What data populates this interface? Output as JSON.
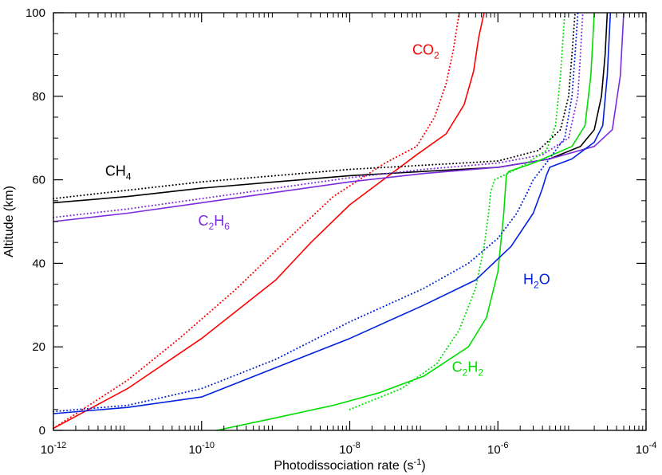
{
  "chart_data": {
    "type": "line",
    "xlabel": "Photodissociation rate (s",
    "xlabel_sup": "-1",
    "xlabel_end": ")",
    "ylabel": "Altitude (km)",
    "x_scale": "log",
    "xlim": [
      1e-12,
      0.0001
    ],
    "ylim": [
      0,
      100
    ],
    "x_ticks": [
      {
        "value": 1e-12,
        "base": "10",
        "exp": "-12"
      },
      {
        "value": 1e-10,
        "base": "10",
        "exp": "-10"
      },
      {
        "value": 1e-08,
        "base": "10",
        "exp": "-8"
      },
      {
        "value": 1e-06,
        "base": "10",
        "exp": "-6"
      },
      {
        "value": 0.0001,
        "base": "10",
        "exp": "-4"
      }
    ],
    "y_ticks": [
      0,
      20,
      40,
      60,
      80,
      100
    ],
    "grid": false,
    "legend": "inline labels",
    "series": [
      {
        "name": "CO2",
        "color": "#ff0000",
        "style": "solid",
        "x": [
          1e-12,
          1e-11,
          1e-10,
          1e-09,
          3e-09,
          1e-08,
          4e-08,
          8e-08,
          2e-07,
          3.5e-07,
          4.7e-07,
          5.5e-07,
          6.5e-07
        ],
        "y": [
          0.5,
          10,
          22,
          36,
          45,
          54,
          62,
          66,
          71,
          78,
          86,
          94,
          100
        ]
      },
      {
        "name": "CO2",
        "color": "#ff0000",
        "style": "dotted",
        "x": [
          1e-12,
          1e-11,
          5e-11,
          3e-10,
          1.5e-09,
          6e-09,
          3e-08,
          8e-08,
          1.4e-07,
          2e-07,
          2.5e-07,
          3e-07
        ],
        "y": [
          0.5,
          12,
          22,
          34,
          46,
          56,
          64,
          68,
          75,
          83,
          91,
          100
        ]
      },
      {
        "name": "CH4",
        "color": "#000000",
        "style": "solid",
        "x": [
          1e-12,
          1e-11,
          1e-10,
          1e-09,
          1e-08,
          1e-07,
          1e-06,
          5e-06,
          1.3e-05,
          2e-05,
          2.5e-05,
          2.8e-05,
          3e-05
        ],
        "y": [
          54.5,
          56,
          58,
          59.5,
          61,
          62,
          63,
          65,
          68,
          72,
          80,
          90,
          100
        ]
      },
      {
        "name": "CH4",
        "color": "#000000",
        "style": "dotted",
        "x": [
          1e-12,
          1e-11,
          1e-10,
          1e-09,
          1e-08,
          1e-07,
          1e-06,
          3.5e-06,
          7e-06,
          9e-06,
          1e-05,
          1.1e-05
        ],
        "y": [
          55.5,
          57.5,
          59.5,
          61,
          62.5,
          63.5,
          64.5,
          67,
          72,
          80,
          90,
          100
        ]
      },
      {
        "name": "C2H6",
        "color": "#7b2bde",
        "style": "solid",
        "x": [
          1e-12,
          1e-11,
          1e-10,
          1e-09,
          1e-08,
          1e-07,
          1e-06,
          5e-06,
          2e-05,
          3.5e-05,
          4.5e-05,
          5e-05
        ],
        "y": [
          50,
          52,
          54.5,
          57,
          59.5,
          61.5,
          63,
          65,
          68,
          72,
          85,
          100
        ]
      },
      {
        "name": "C2H6",
        "color": "#7b2bde",
        "style": "dotted",
        "x": [
          1e-12,
          1e-11,
          1e-10,
          1e-09,
          1e-08,
          1e-07,
          1e-06,
          4e-06,
          9e-06,
          1.2e-05,
          1.3e-05,
          1.4e-05
        ],
        "y": [
          51,
          53,
          55.5,
          58,
          60.5,
          62.5,
          64,
          66,
          70,
          80,
          90,
          100
        ]
      },
      {
        "name": "C2H2",
        "color": "#00dd00",
        "style": "solid",
        "x": [
          1.6e-10,
          1e-09,
          6e-09,
          2.5e-08,
          1e-07,
          4e-07,
          7e-07,
          1e-06,
          1.2e-06,
          1.3e-06,
          1.4e-06,
          3e-06,
          1e-05,
          1.5e-05,
          1.8e-05,
          2e-05
        ],
        "y": [
          0,
          3,
          6,
          9,
          13,
          20,
          27,
          38,
          52,
          61,
          62,
          64,
          68,
          73,
          85,
          100
        ]
      },
      {
        "name": "C2H2",
        "color": "#00dd00",
        "style": "dotted",
        "x": [
          1e-08,
          5e-08,
          1.5e-07,
          3e-07,
          5e-07,
          6.5e-07,
          7.5e-07,
          8e-07,
          9e-07,
          2e-06,
          4.5e-06,
          6e-06,
          7e-06,
          8e-06
        ],
        "y": [
          5,
          10,
          16,
          24,
          34,
          44,
          52,
          57,
          60,
          63,
          67,
          73,
          85,
          100
        ]
      },
      {
        "name": "H2O",
        "color": "#0022dd",
        "style": "solid",
        "x": [
          1e-12,
          1e-11,
          1e-10,
          1e-09,
          1e-08,
          1e-07,
          5e-07,
          1.5e-06,
          3e-06,
          4e-06,
          4.5e-06,
          5e-06,
          1e-05,
          2e-05,
          2.6e-05,
          3e-05,
          3.3e-05
        ],
        "y": [
          4,
          5.5,
          8,
          15,
          22,
          30,
          36,
          44,
          52,
          58,
          61,
          63,
          65,
          69,
          73,
          85,
          100
        ]
      },
      {
        "name": "H2O",
        "color": "#0022dd",
        "style": "dotted",
        "x": [
          1e-12,
          1e-11,
          1e-10,
          1e-09,
          1e-08,
          1e-07,
          4e-07,
          1e-06,
          1.8e-06,
          2.5e-06,
          3e-06,
          4.5e-06,
          8e-06,
          1e-05,
          1.1e-05,
          1.2e-05
        ],
        "y": [
          4.5,
          6,
          10,
          17,
          26,
          34,
          40,
          46,
          52,
          57,
          60,
          64,
          70,
          80,
          90,
          100
        ]
      }
    ],
    "labels": [
      {
        "name": "CH4",
        "parts": [
          [
            "CH",
            false
          ],
          [
            "4",
            true
          ]
        ],
        "color": "#000000",
        "x": 5e-12,
        "y": 61
      },
      {
        "name": "C2H6",
        "parts": [
          [
            "C",
            false
          ],
          [
            "2",
            true
          ],
          [
            "H",
            false
          ],
          [
            "6",
            true
          ]
        ],
        "color": "#7b2bde",
        "x": 9e-11,
        "y": 49
      },
      {
        "name": "CO2",
        "parts": [
          [
            "CO",
            false
          ],
          [
            "2",
            true
          ]
        ],
        "color": "#ff0000",
        "x": 7e-08,
        "y": 90
      },
      {
        "name": "H2O",
        "parts": [
          [
            "H",
            false
          ],
          [
            "2",
            true
          ],
          [
            "O",
            false
          ]
        ],
        "color": "#0022dd",
        "x": 2.2e-06,
        "y": 35
      },
      {
        "name": "C2H2",
        "parts": [
          [
            "C",
            false
          ],
          [
            "2",
            true
          ],
          [
            "H",
            false
          ],
          [
            "2",
            true
          ]
        ],
        "color": "#00dd00",
        "x": 2.4e-07,
        "y": 14
      }
    ]
  }
}
